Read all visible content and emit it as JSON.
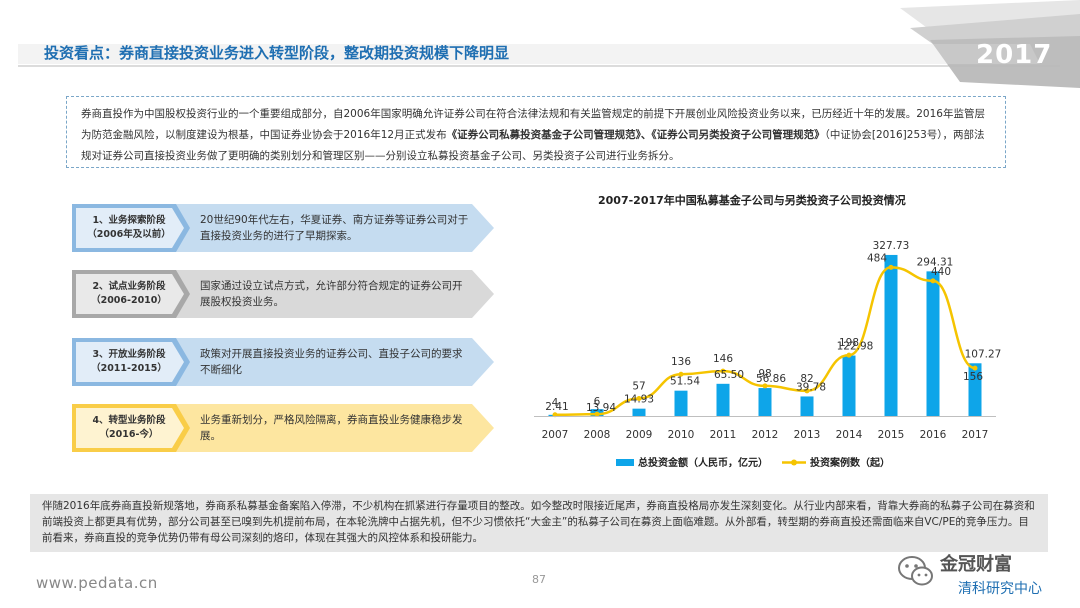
{
  "header": {
    "title": "投资看点：券商直接投资业务进入转型阶段，整改期投资规模下降明显",
    "year": "2017"
  },
  "intro": {
    "p1": "券商直投作为中国股权投资行业的一个重要组成部分，自2006年国家明确允许证券公司在符合法律法规和有关监管规定的前提下开展创业风险投资业务以来，已历经近十年的发展。2016年监管层为防范金融风险，以制度建设为根基，中国证券业协会于2016年12月正式发布",
    "bold1": "《证券公司私募投资基金子公司管理规范》、《证券公司另类投资子公司管理规范》",
    "p2": "（中证协会[2016]253号），两部法规对证券公司直接投资业务做了更明确的类别划分和管理区别——分别设立私募投资基金子公司、另类投资子公司进行业务拆分。"
  },
  "stages": [
    {
      "label1": "1、业务探索阶段",
      "label2": "（2006年及以前）",
      "desc": "20世纪90年代左右，华夏证券、南方证券等证券公司对于直接投资业务的进行了早期探索。",
      "color": "#5b9bd5",
      "light": "#c5dcf0"
    },
    {
      "label1": "2、试点业务阶段",
      "label2": "（2006-2010）",
      "desc": "国家通过设立试点方式，允许部分符合规定的证券公司开展股权投资业务。",
      "color": "#7f7f7f",
      "light": "#d9d9d9"
    },
    {
      "label1": "3、开放业务阶段",
      "label2": "（2011-2015）",
      "desc": "政策对开展直接投资业务的证券公司、直投子公司的要求不断细化",
      "color": "#5b9bd5",
      "light": "#c5dcf0"
    },
    {
      "label1": "4、转型业务阶段",
      "label2": "（2016-今）",
      "desc": "业务重新划分，严格风险隔离，券商直投业务健康稳步发展。",
      "color": "#f5b800",
      "light": "#fde6a0"
    }
  ],
  "chart_data": {
    "type": "bar",
    "title": "2007-2017年中国私募基金子公司与另类投资子公司投资情况",
    "categories": [
      "2007",
      "2008",
      "2009",
      "2010",
      "2011",
      "2012",
      "2013",
      "2014",
      "2015",
      "2016",
      "2017"
    ],
    "series": [
      {
        "name": "总投资金额（人民币，亿元）",
        "type": "bar",
        "color": "#0ea5e9",
        "values": [
          2.41,
          13.94,
          14.93,
          51.54,
          65.5,
          56.86,
          39.78,
          122.98,
          327.73,
          294.31,
          107.27
        ]
      },
      {
        "name": "投资案例数（起）",
        "type": "line",
        "color": "#f5c400",
        "values": [
          4,
          6,
          57,
          136,
          146,
          98,
          82,
          198,
          484,
          440,
          156
        ]
      }
    ],
    "bar_ylim": [
      0,
      350
    ],
    "line_ylim": [
      0,
      560
    ],
    "legend_position": "bottom",
    "grid": false
  },
  "summary": {
    "text": "伴随2016年底券商直投新规落地，券商系私募基金备案陷入停滞，不少机构在抓紧进行存量项目的整改。如今整改时限接近尾声，券商直投格局亦发生深刻变化。从行业内部来看，背靠大券商的私募子公司在募资和前端投资上都更具有优势，部分公司甚至已嗅到先机提前布局，在本轮洗牌中占据先机，但不少习惯依托“大金主”的私募子公司在募资上面临难题。从外部看，转型期的券商直投还需面临来自VC/PE的竞争压力。目前看来，券商直投的竞争优势仍带有母公司深刻的烙印，体现在其强大的风控体系和投研能力。"
  },
  "footer": {
    "url": "www.pedata.cn",
    "page": "87",
    "watermark": "金冠财富",
    "watermark_sub": "清科研究中心"
  }
}
